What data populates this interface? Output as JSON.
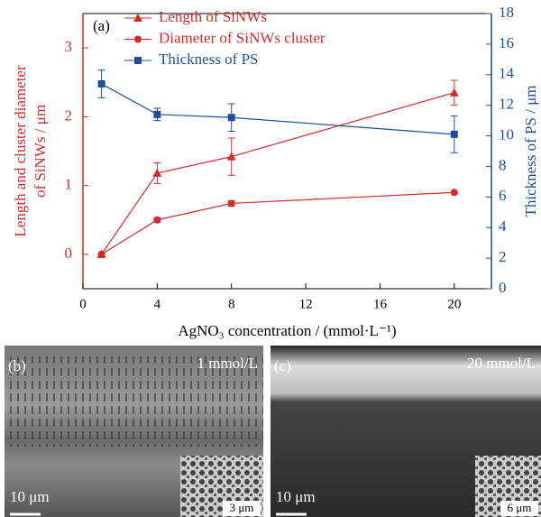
{
  "chart_data": {
    "type": "line",
    "panel_label": "(a)",
    "xlabel": "AgNO₃ concentration / (mmol·L⁻¹)",
    "ylabel": [
      "Length and cluster diameter",
      "of SiNWs / μm"
    ],
    "y2label": "Thickness of PS / μm",
    "x": [
      1,
      4,
      8,
      20
    ],
    "xlim": [
      0,
      22
    ],
    "xticks": [
      0,
      4,
      8,
      12,
      16,
      20
    ],
    "ylim": [
      -0.5,
      3.5
    ],
    "yticks": [
      0,
      1,
      2,
      3
    ],
    "y2lim": [
      0,
      18
    ],
    "y2ticks": [
      0,
      2,
      4,
      6,
      8,
      10,
      12,
      14,
      16,
      18
    ],
    "left_axis_color": "#d42a2a",
    "right_axis_color": "#1f4e9c",
    "series": [
      {
        "name": "Length of SiNWs",
        "color": "#d42a2a",
        "marker": "triangle",
        "values": [
          0,
          1.18,
          1.42,
          2.35
        ],
        "errors": [
          0,
          0.15,
          0.27,
          0.18
        ]
      },
      {
        "name": "Diameter of SiNWs cluster",
        "color": "#d42a2a",
        "marker": "circle",
        "values": [
          0,
          0.5,
          0.74,
          0.9
        ],
        "errors": [
          0,
          0.03,
          0.04,
          0
        ]
      },
      {
        "name": "Thickness of PS",
        "color": "#1f4e9c",
        "marker": "square",
        "axis": "y2",
        "values": [
          13.4,
          11.4,
          11.2,
          10.1
        ],
        "errors": [
          0.9,
          0.4,
          0.9,
          1.2
        ]
      }
    ]
  },
  "images": [
    {
      "label": "(b)",
      "condition": "1 mmol/L",
      "scale_bar": "10 μm",
      "inset_scale": "3 μm"
    },
    {
      "label": "(c)",
      "condition": "20 mmol/L",
      "scale_bar": "10 μm",
      "inset_scale": "6 μm"
    }
  ]
}
